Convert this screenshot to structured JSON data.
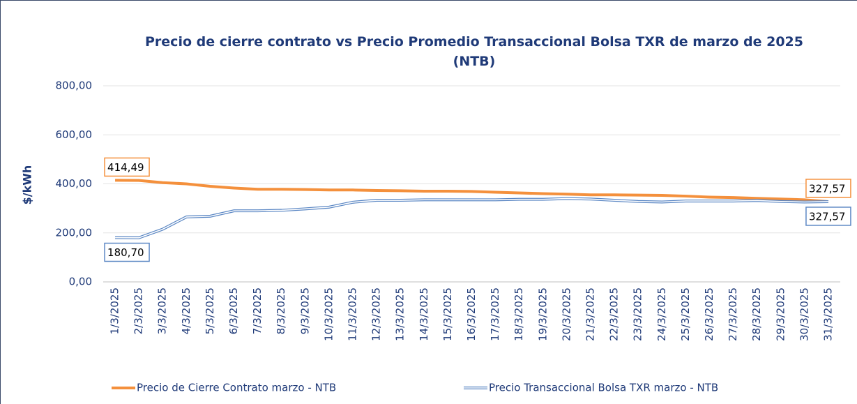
{
  "chart_data": {
    "type": "line",
    "title": "Precio de cierre contrato vs Precio Promedio Transaccional Bolsa TXR de marzo de 2025 (NTB)",
    "y_label": "$/kWh",
    "categories": [
      "1/3/2025",
      "2/3/2025",
      "3/3/2025",
      "4/3/2025",
      "5/3/2025",
      "6/3/2025",
      "7/3/2025",
      "8/3/2025",
      "9/3/2025",
      "10/3/2025",
      "11/3/2025",
      "12/3/2025",
      "13/3/2025",
      "14/3/2025",
      "15/3/2025",
      "16/3/2025",
      "17/3/2025",
      "18/3/2025",
      "19/3/2025",
      "20/3/2025",
      "21/3/2025",
      "22/3/2025",
      "23/3/2025",
      "24/3/2025",
      "25/3/2025",
      "26/3/2025",
      "27/3/2025",
      "28/3/2025",
      "29/3/2025",
      "30/3/2025",
      "31/3/2025"
    ],
    "series": [
      {
        "name": "Precio de Cierre Contrato marzo - NTB",
        "color": "#f4903c",
        "values": [
          414.49,
          414,
          405,
          400,
          390,
          383,
          378,
          378,
          377,
          375,
          375,
          373,
          372,
          370,
          370,
          369,
          366,
          363,
          360,
          358,
          355,
          355,
          354,
          353,
          350,
          346,
          344,
          341,
          338,
          335,
          327.57
        ],
        "value_labels": [
          "414,49",
          null,
          null,
          null,
          null,
          null,
          null,
          null,
          null,
          null,
          null,
          null,
          null,
          null,
          null,
          null,
          null,
          null,
          null,
          null,
          null,
          null,
          null,
          null,
          null,
          null,
          null,
          null,
          null,
          null,
          "327,57"
        ]
      },
      {
        "name": "Precio Transaccional Bolsa TXR marzo - NTB",
        "color": "#5b87c4",
        "line_style": "double",
        "values": [
          180.7,
          180,
          215,
          265,
          268,
          290,
          290,
          292,
          298,
          305,
          325,
          333,
          333,
          335,
          335,
          335,
          335,
          337,
          337,
          340,
          338,
          333,
          328,
          326,
          330,
          330,
          330,
          332,
          328,
          326,
          327.57
        ],
        "value_labels": [
          "180,70",
          null,
          null,
          null,
          null,
          null,
          null,
          null,
          null,
          null,
          null,
          null,
          null,
          null,
          null,
          null,
          null,
          null,
          null,
          null,
          null,
          null,
          null,
          null,
          null,
          null,
          null,
          null,
          null,
          null,
          "327,57"
        ]
      }
    ],
    "ylim": [
      0,
      800
    ],
    "yticks": [
      {
        "value": 0,
        "label": "0,00"
      },
      {
        "value": 200,
        "label": "200,00"
      },
      {
        "value": 400,
        "label": "400,00"
      },
      {
        "value": 600,
        "label": "600,00"
      },
      {
        "value": 800,
        "label": "800,00"
      }
    ],
    "grid": true,
    "legend": "bottom"
  }
}
